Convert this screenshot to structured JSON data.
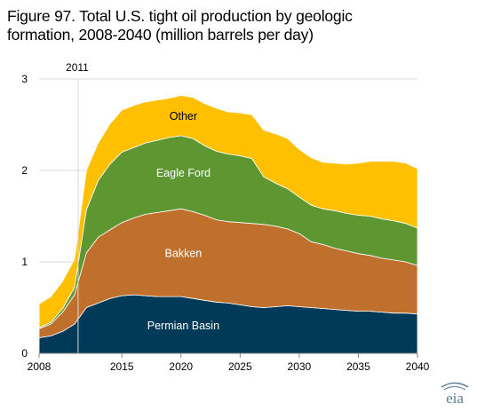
{
  "figure": {
    "title_line1": "Figure 97. Total U.S. tight oil production by geologic",
    "title_line2": "formation, 2008-2040 (million barrels per day)"
  },
  "logo": {
    "text": "eia",
    "color": "#5a7f9a"
  },
  "chart_data": {
    "type": "area",
    "stacked": true,
    "title": "Figure 97. Total U.S. tight oil production by geologic formation, 2008-2040 (million barrels per day)",
    "xlabel": "",
    "ylabel": "",
    "x": [
      2008,
      2009,
      2010,
      2011,
      2012,
      2013,
      2014,
      2015,
      2016,
      2017,
      2018,
      2019,
      2020,
      2021,
      2022,
      2023,
      2024,
      2025,
      2026,
      2027,
      2028,
      2029,
      2030,
      2031,
      2032,
      2033,
      2034,
      2035,
      2036,
      2037,
      2038,
      2039,
      2040
    ],
    "xticks": [
      2008,
      2015,
      2020,
      2025,
      2030,
      2035,
      2040
    ],
    "yticks": [
      0,
      1,
      2,
      3
    ],
    "xlim": [
      2008,
      2040
    ],
    "ylim": [
      0,
      3
    ],
    "grid": "horizontal",
    "annotation": {
      "text": "2011",
      "x": 2011.3
    },
    "series": [
      {
        "name": "Permian Basin",
        "color": "#003a59",
        "label_color": "#ffffff",
        "values": [
          0.17,
          0.19,
          0.24,
          0.32,
          0.5,
          0.55,
          0.6,
          0.63,
          0.64,
          0.63,
          0.62,
          0.62,
          0.62,
          0.6,
          0.58,
          0.56,
          0.55,
          0.53,
          0.51,
          0.5,
          0.51,
          0.52,
          0.51,
          0.5,
          0.49,
          0.48,
          0.47,
          0.46,
          0.46,
          0.45,
          0.44,
          0.44,
          0.43
        ]
      },
      {
        "name": "Bakken",
        "color": "#c0702d",
        "label_color": "#ffffff",
        "values": [
          0.1,
          0.13,
          0.21,
          0.32,
          0.6,
          0.72,
          0.75,
          0.8,
          0.84,
          0.89,
          0.92,
          0.94,
          0.96,
          0.95,
          0.93,
          0.9,
          0.89,
          0.9,
          0.91,
          0.91,
          0.88,
          0.84,
          0.8,
          0.72,
          0.7,
          0.67,
          0.65,
          0.63,
          0.61,
          0.59,
          0.58,
          0.56,
          0.53
        ]
      },
      {
        "name": "Eagle Ford",
        "color": "#5e9732",
        "label_color": "#ffffff",
        "values": [
          0.01,
          0.02,
          0.04,
          0.08,
          0.47,
          0.62,
          0.72,
          0.77,
          0.77,
          0.78,
          0.79,
          0.8,
          0.8,
          0.8,
          0.76,
          0.75,
          0.74,
          0.73,
          0.71,
          0.52,
          0.47,
          0.44,
          0.4,
          0.4,
          0.39,
          0.41,
          0.41,
          0.42,
          0.43,
          0.43,
          0.43,
          0.42,
          0.41
        ]
      },
      {
        "name": "Other",
        "color": "#fec000",
        "label_color": "#000000",
        "values": [
          0.26,
          0.28,
          0.3,
          0.31,
          0.43,
          0.41,
          0.44,
          0.46,
          0.46,
          0.45,
          0.44,
          0.43,
          0.44,
          0.45,
          0.46,
          0.47,
          0.46,
          0.47,
          0.48,
          0.51,
          0.54,
          0.55,
          0.52,
          0.52,
          0.51,
          0.52,
          0.54,
          0.57,
          0.6,
          0.63,
          0.65,
          0.66,
          0.65
        ]
      }
    ]
  }
}
